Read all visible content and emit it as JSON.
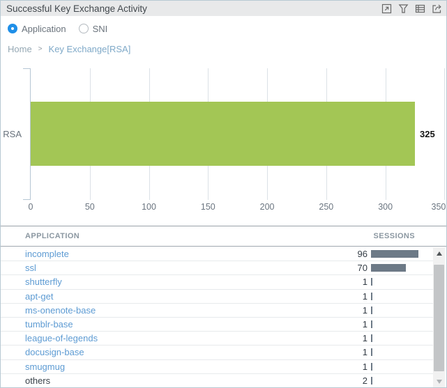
{
  "header": {
    "title": "Successful Key Exchange Activity",
    "icons": [
      "maximize-icon",
      "filter-icon",
      "table-view-icon",
      "export-icon"
    ]
  },
  "view_toggle": {
    "options": [
      {
        "label": "Application",
        "selected": true
      },
      {
        "label": "SNI",
        "selected": false
      }
    ]
  },
  "breadcrumb": {
    "home": "Home",
    "separator": ">",
    "current": "Key Exchange[RSA]"
  },
  "chart_data": {
    "type": "bar",
    "orientation": "horizontal",
    "title": "Successful Key Exchange Activity",
    "categories": [
      "RSA"
    ],
    "values": [
      325
    ],
    "value_labels": [
      "325"
    ],
    "xlim": [
      0,
      350
    ],
    "x_ticks": [
      0,
      50,
      100,
      150,
      200,
      250,
      300,
      350
    ],
    "grid": true,
    "bar_color": "#a3c655",
    "axis_color": "#b6c6d4"
  },
  "table": {
    "columns": [
      "APPLICATION",
      "SESSIONS"
    ],
    "rows": [
      {
        "application": "incomplete",
        "sessions": 96,
        "link": true
      },
      {
        "application": "ssl",
        "sessions": 70,
        "link": true
      },
      {
        "application": "shutterfly",
        "sessions": 1,
        "link": true
      },
      {
        "application": "apt-get",
        "sessions": 1,
        "link": true
      },
      {
        "application": "ms-onenote-base",
        "sessions": 1,
        "link": true
      },
      {
        "application": "tumblr-base",
        "sessions": 1,
        "link": true
      },
      {
        "application": "league-of-legends",
        "sessions": 1,
        "link": true
      },
      {
        "application": "docusign-base",
        "sessions": 1,
        "link": true
      },
      {
        "application": "smugmug",
        "sessions": 1,
        "link": true
      },
      {
        "application": "others",
        "sessions": 2,
        "link": false
      }
    ],
    "session_bar_color": "#6d7a87"
  },
  "colors": {
    "accent_blue": "#1f8fe8",
    "link_blue": "#5d9bd3",
    "bar_green": "#a3c655",
    "session_bar_gray": "#6d7a87",
    "titlebar_bg": "#e8e9ea"
  }
}
